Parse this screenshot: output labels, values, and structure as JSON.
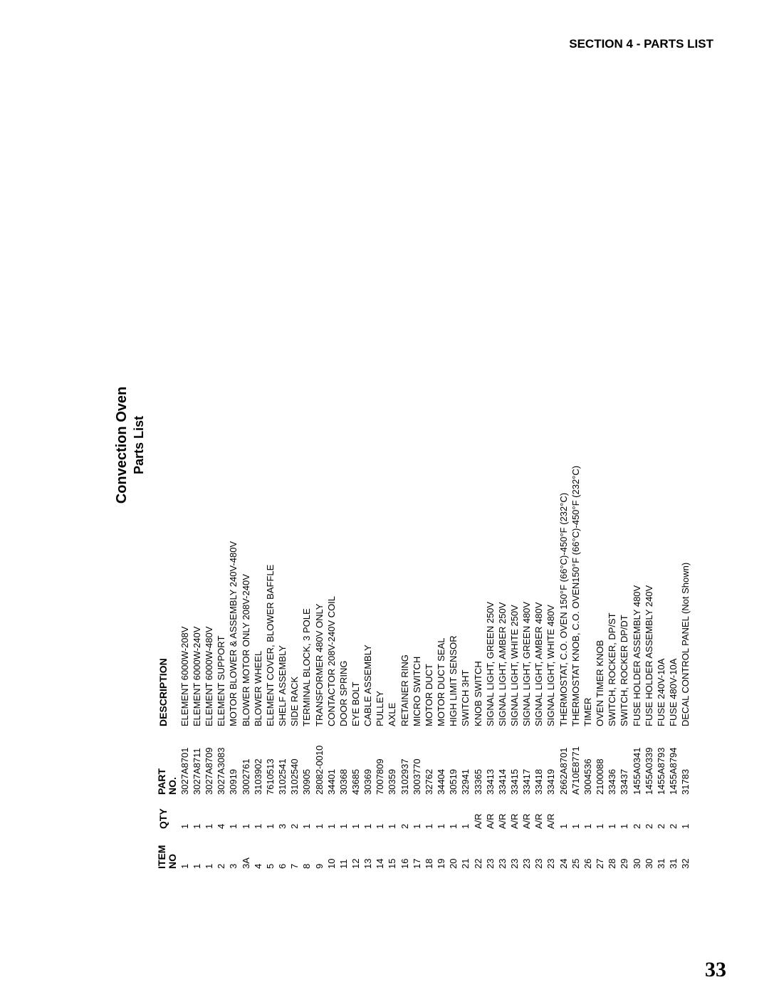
{
  "section_header": "SECTION 4 - PARTS LIST",
  "title": "Convection Oven",
  "subtitle": "Parts List",
  "columns": {
    "item_line1": "ITEM",
    "item_line2": "NO",
    "qty": "QTY",
    "part_line1": "PART",
    "part_line2": "NO.",
    "desc": "DESCRIPTION"
  },
  "rows": [
    {
      "item": "1",
      "qty": "1",
      "part": "3027A8701",
      "desc": "ELEMENT 6000W-208V"
    },
    {
      "item": "1",
      "qty": "1",
      "part": "3027A8711",
      "desc": "ELEMENT 6000W-240V"
    },
    {
      "item": "1",
      "qty": "1",
      "part": "3027A8709",
      "desc": "ELEMENT 6000W-480V"
    },
    {
      "item": "2",
      "qty": "4",
      "part": "3027A3083",
      "desc": "ELEMENT SUPPORT"
    },
    {
      "item": "3",
      "qty": "1",
      "part": "30919",
      "desc": "MOTOR BLOWER & ASSEMBLY 240V-480V"
    },
    {
      "item": "3A",
      "qty": "1",
      "part": "3002761",
      "desc": "BLOWER MOTOR ONLY 208V-240V"
    },
    {
      "item": "4",
      "qty": "1",
      "part": "3103902",
      "desc": "BLOWER WHEEL"
    },
    {
      "item": "5",
      "qty": "1",
      "part": "7610513",
      "desc": "ELEMENT COVER, BLOWER BAFFLE"
    },
    {
      "item": "6",
      "qty": "3",
      "part": "3102541",
      "desc": "SHELF ASSEMBLY"
    },
    {
      "item": "7",
      "qty": "2",
      "part": "3102540",
      "desc": "SIDE RACK"
    },
    {
      "item": "8",
      "qty": "1",
      "part": "30905",
      "desc": "TERMINAL BLOCK, 3 POLE"
    },
    {
      "item": "9",
      "qty": "1",
      "part": "28082-0010",
      "desc": "TRANSFORMER 480V ONLY"
    },
    {
      "item": "10",
      "qty": "1",
      "part": "34401",
      "desc": "CONTACTOR 208V-240V COIL"
    },
    {
      "item": "11",
      "qty": "1",
      "part": "30368",
      "desc": "DOOR SPRING"
    },
    {
      "item": "12",
      "qty": "1",
      "part": "43685",
      "desc": "EYE BOLT"
    },
    {
      "item": "13",
      "qty": "1",
      "part": "30369",
      "desc": "CABLE ASSEMBLY"
    },
    {
      "item": "14",
      "qty": "1",
      "part": "7007809",
      "desc": "PULLEY"
    },
    {
      "item": "15",
      "qty": "1",
      "part": "30359",
      "desc": "AXLE"
    },
    {
      "item": "16",
      "qty": "2",
      "part": "3102937",
      "desc": "RETAINER RING"
    },
    {
      "item": "17",
      "qty": "1",
      "part": "3003770",
      "desc": "MICRO SWITCH"
    },
    {
      "item": "18",
      "qty": "1",
      "part": "32762",
      "desc": "MOTOR DUCT"
    },
    {
      "item": "19",
      "qty": "1",
      "part": "34404",
      "desc": "MOTOR DUCT SEAL"
    },
    {
      "item": "20",
      "qty": "1",
      "part": "30519",
      "desc": "HIGH LIMIT SENSOR"
    },
    {
      "item": "21",
      "qty": "1",
      "part": "32941",
      "desc": "SWITCH 3HT"
    },
    {
      "item": "22",
      "qty": "A/R",
      "part": "33365",
      "desc": "KNOB SWITCH"
    },
    {
      "item": "23",
      "qty": "A/R",
      "part": "33413",
      "desc": "SIGNAL LIGHT, GREEN 250V"
    },
    {
      "item": "23",
      "qty": "A/R",
      "part": "33414",
      "desc": "SIGNAL LIGHT, AMBER 250V"
    },
    {
      "item": "23",
      "qty": "A/R",
      "part": "33415",
      "desc": "SIGNAL LIGHT, WHITE 250V"
    },
    {
      "item": "23",
      "qty": "A/R",
      "part": "33417",
      "desc": "SIGNAL LIGHT, GREEN 480V"
    },
    {
      "item": "23",
      "qty": "A/R",
      "part": "33418",
      "desc": "SIGNAL LIGHT, AMBER 480V"
    },
    {
      "item": "23",
      "qty": "A/R",
      "part": "33419",
      "desc": "SIGNAL LIGHT, WHITE 480V"
    },
    {
      "item": "24",
      "qty": "1",
      "part": "2662A8701",
      "desc": "THERMOSTAT, C.O. OVEN 150°F (66°C)-450°F (232°C)"
    },
    {
      "item": "25",
      "qty": "1",
      "part": "A710E8771",
      "desc": "THERMOSTAT KNOB, C.O. OVEN150°F (66°C)-450°F (232°C)"
    },
    {
      "item": "26",
      "qty": "1",
      "part": "3004536",
      "desc": "TIMER"
    },
    {
      "item": "27",
      "qty": "1",
      "part": "2100088",
      "desc": "OVEN TIMER KNOB"
    },
    {
      "item": "28",
      "qty": "1",
      "part": "33436",
      "desc": "SWITCH, ROCKER, DP/ST"
    },
    {
      "item": "29",
      "qty": "1",
      "part": "33437",
      "desc": "SWITCH, ROCKER DP/DT"
    },
    {
      "item": "30",
      "qty": "2",
      "part": "1455A0341",
      "desc": "FUSE HOLDER ASSEMBLY 480V"
    },
    {
      "item": "30",
      "qty": "2",
      "part": "1455A0339",
      "desc": "FUSE HOLDER ASSEMBLY 240V"
    },
    {
      "item": "31",
      "qty": "2",
      "part": "1455A8793",
      "desc": "FUSE 240V-10A"
    },
    {
      "item": "31",
      "qty": "2",
      "part": "1455A8794",
      "desc": "FUSE 480V-10A"
    },
    {
      "item": "32",
      "qty": "1",
      "part": "31783",
      "desc": "DECAL CONTROL PANEL (Not Shown)"
    }
  ],
  "page_number": "33"
}
